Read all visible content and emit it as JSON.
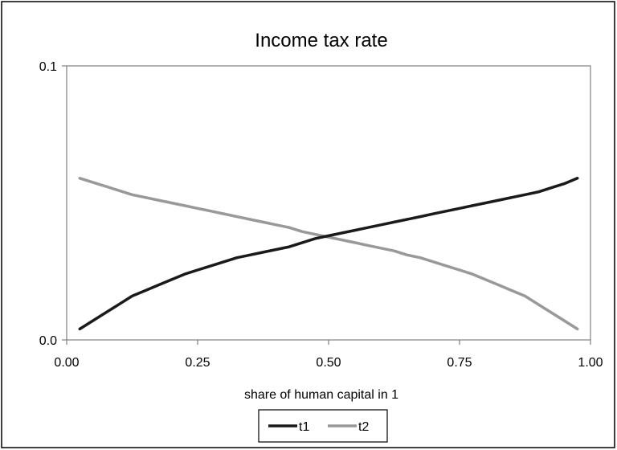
{
  "chart_data": {
    "type": "line",
    "title": "Income tax rate",
    "xlabel": "share of human capital in 1",
    "ylabel": "",
    "xlim": [
      0,
      1
    ],
    "ylim": [
      0,
      0.1
    ],
    "x_ticks": [
      "0.00",
      "0.25",
      "0.50",
      "0.75",
      "1.00"
    ],
    "y_ticks": [
      "0.0",
      "0.1"
    ],
    "grid": false,
    "legend_position": "bottom",
    "series": [
      {
        "name": "t1",
        "color": "#1a1a1a",
        "x": [
          0.025,
          0.05,
          0.075,
          0.1,
          0.125,
          0.15,
          0.175,
          0.2,
          0.225,
          0.25,
          0.275,
          0.3,
          0.325,
          0.35,
          0.375,
          0.4,
          0.425,
          0.45,
          0.475,
          0.5,
          0.525,
          0.55,
          0.575,
          0.6,
          0.625,
          0.65,
          0.675,
          0.7,
          0.725,
          0.75,
          0.775,
          0.8,
          0.825,
          0.85,
          0.875,
          0.9,
          0.925,
          0.95,
          0.975
        ],
        "values": [
          0.004,
          0.007,
          0.01,
          0.013,
          0.016,
          0.018,
          0.02,
          0.022,
          0.024,
          0.0255,
          0.027,
          0.0285,
          0.03,
          0.031,
          0.032,
          0.033,
          0.034,
          0.0355,
          0.037,
          0.038,
          0.039,
          0.04,
          0.041,
          0.042,
          0.043,
          0.044,
          0.045,
          0.046,
          0.047,
          0.048,
          0.049,
          0.05,
          0.051,
          0.052,
          0.053,
          0.054,
          0.0555,
          0.057,
          0.059
        ]
      },
      {
        "name": "t2",
        "color": "#999999",
        "x": [
          0.025,
          0.05,
          0.075,
          0.1,
          0.125,
          0.15,
          0.175,
          0.2,
          0.225,
          0.25,
          0.275,
          0.3,
          0.325,
          0.35,
          0.375,
          0.4,
          0.425,
          0.45,
          0.475,
          0.5,
          0.525,
          0.55,
          0.575,
          0.6,
          0.625,
          0.65,
          0.675,
          0.7,
          0.725,
          0.75,
          0.775,
          0.8,
          0.825,
          0.85,
          0.875,
          0.9,
          0.925,
          0.95,
          0.975
        ],
        "values": [
          0.059,
          0.0575,
          0.056,
          0.0545,
          0.053,
          0.052,
          0.051,
          0.05,
          0.049,
          0.048,
          0.047,
          0.046,
          0.045,
          0.044,
          0.043,
          0.042,
          0.041,
          0.0395,
          0.0385,
          0.0375,
          0.0365,
          0.0355,
          0.0345,
          0.0335,
          0.0325,
          0.031,
          0.03,
          0.0285,
          0.027,
          0.0255,
          0.024,
          0.022,
          0.02,
          0.018,
          0.016,
          0.013,
          0.01,
          0.007,
          0.004
        ]
      }
    ]
  }
}
